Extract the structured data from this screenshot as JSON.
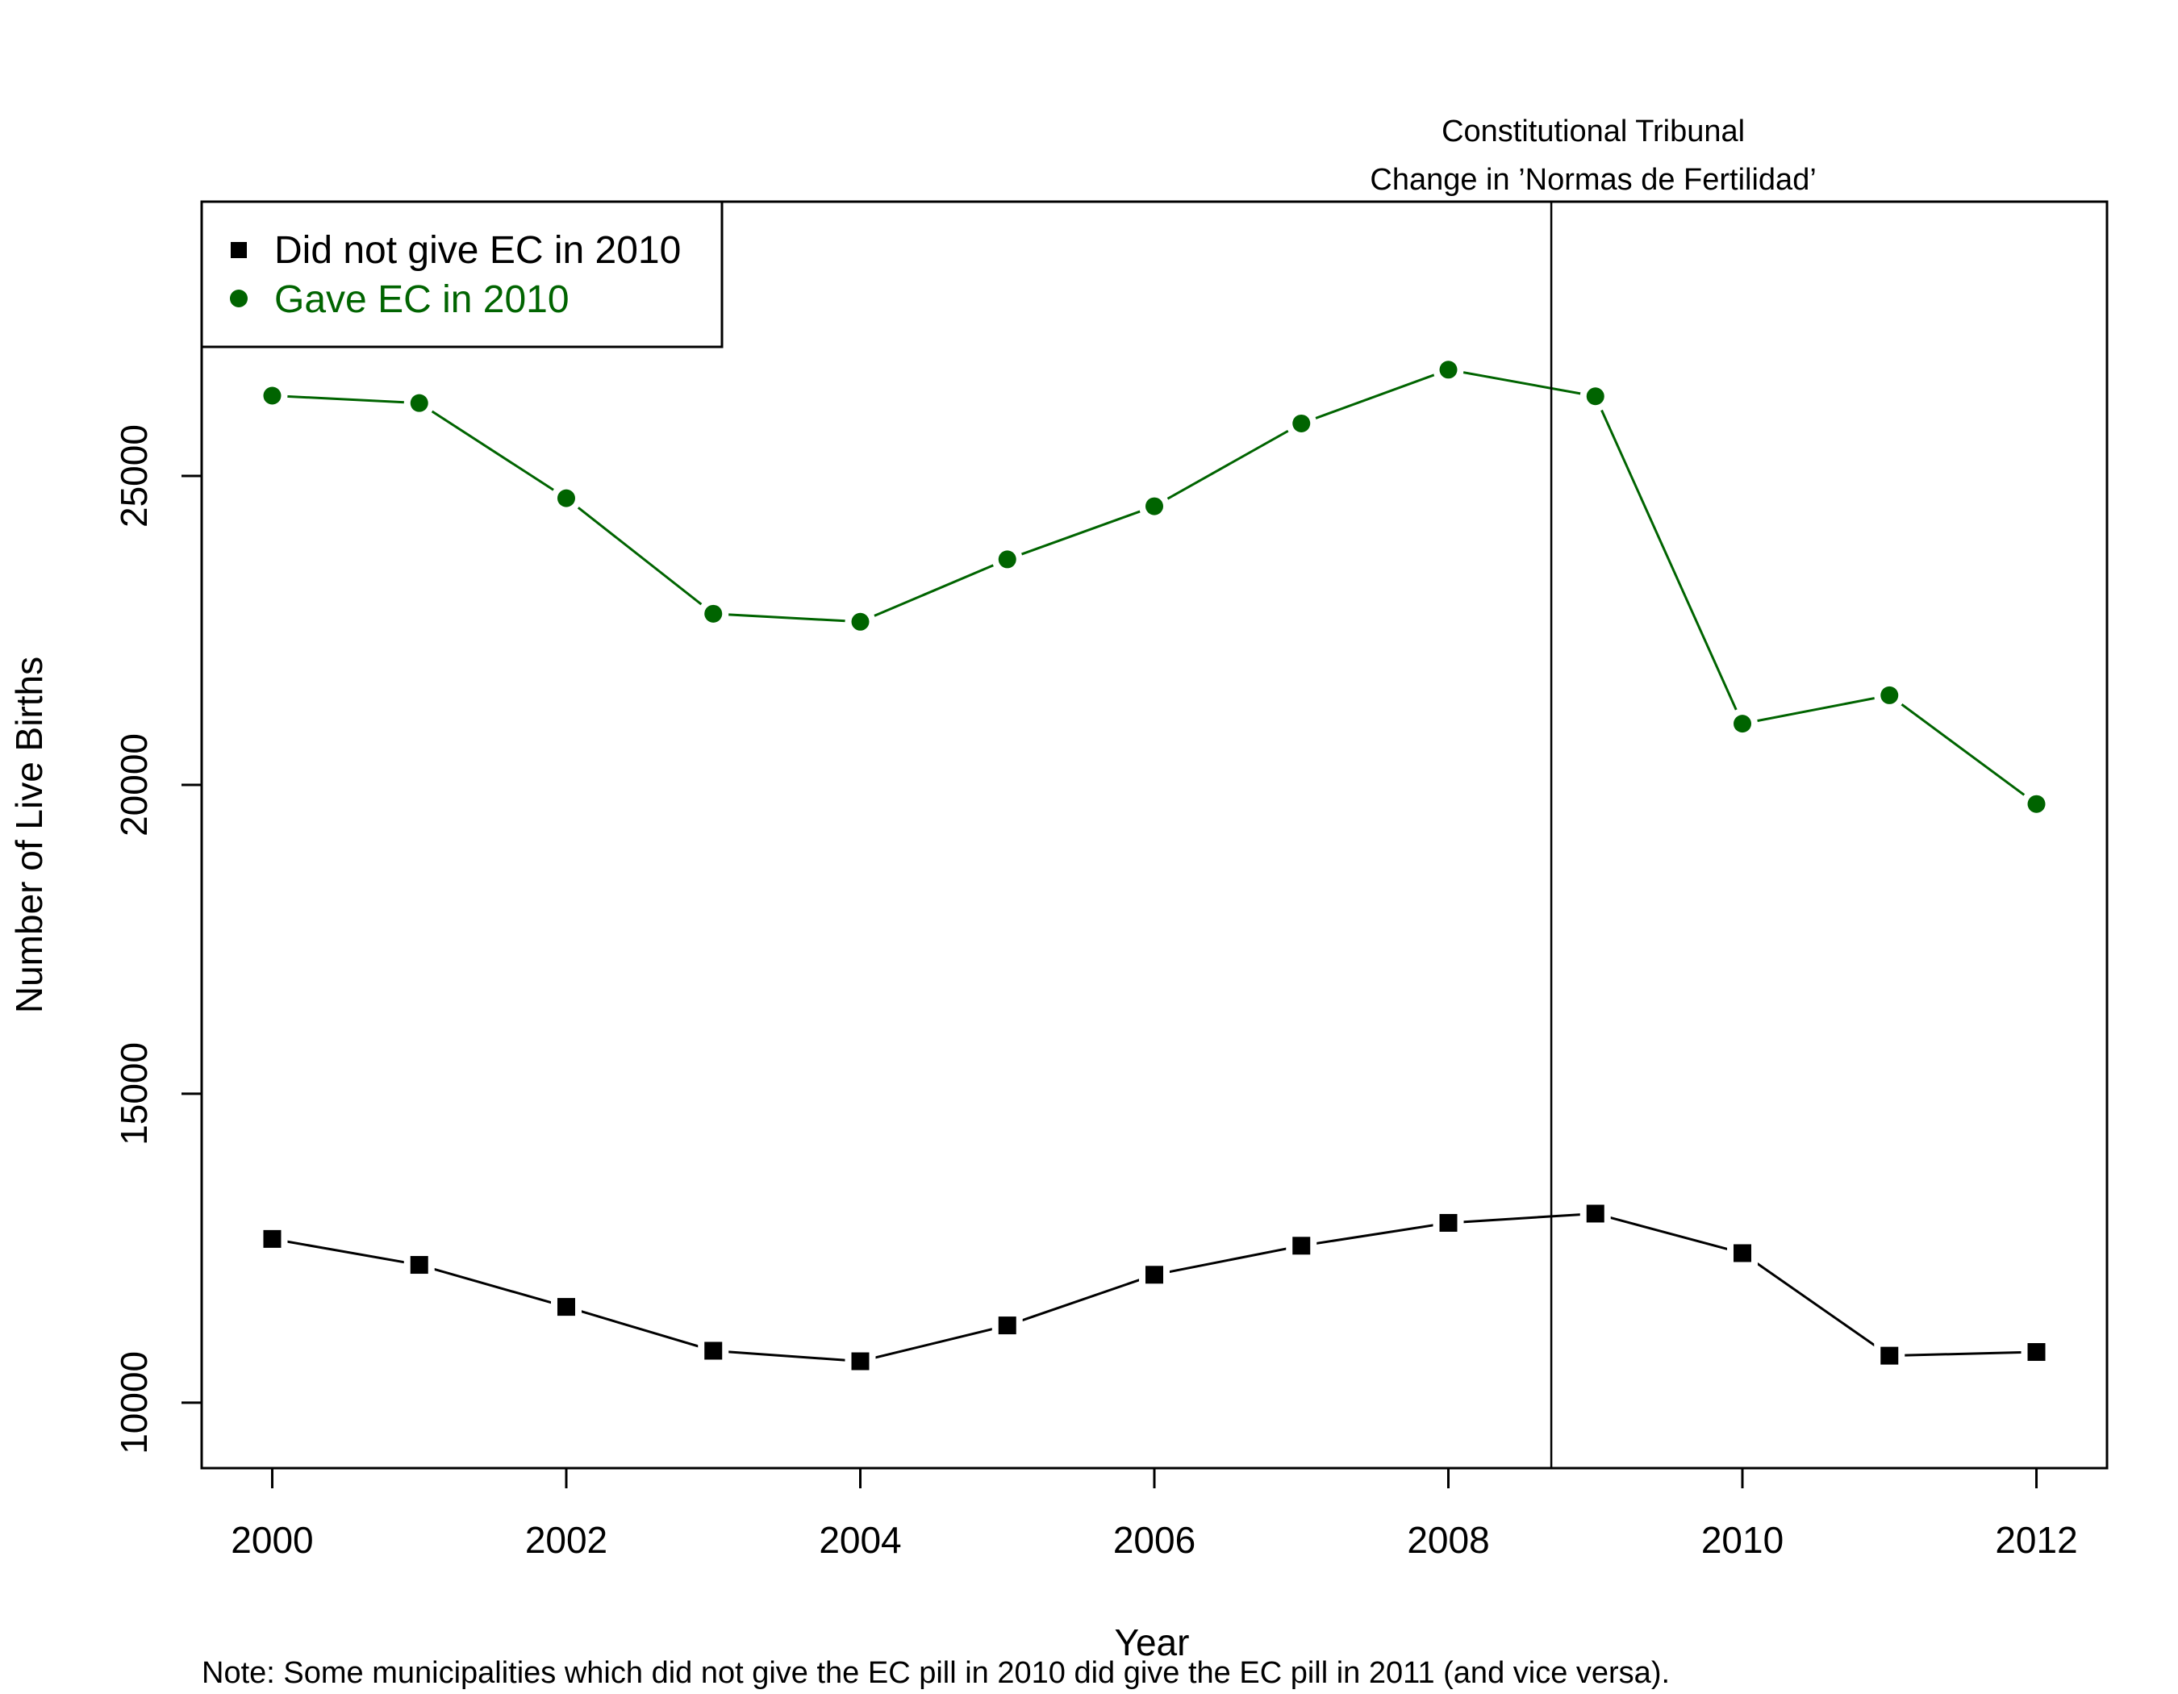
{
  "chart_data": {
    "type": "line",
    "x": [
      2000,
      2001,
      2002,
      2003,
      2004,
      2005,
      2006,
      2007,
      2008,
      2009,
      2010,
      2011,
      2012
    ],
    "series": [
      {
        "name": "Did not give EC in 2010",
        "color": "#000000",
        "marker": "square",
        "values": [
          12650,
          12230,
          11550,
          10840,
          10670,
          11250,
          12070,
          12540,
          12910,
          13060,
          12420,
          10760,
          10820
        ]
      },
      {
        "name": "Gave EC in 2010",
        "color": "#006400",
        "marker": "circle",
        "values": [
          26300,
          26180,
          24640,
          22770,
          22640,
          23650,
          24510,
          25850,
          26720,
          26290,
          20990,
          21450,
          19690
        ]
      }
    ],
    "xlabel": "Year",
    "ylabel": "Number of Live Births",
    "xlim": [
      1999.52,
      2012.48
    ],
    "ylim": [
      8940,
      29440
    ],
    "xticks": [
      "2000",
      "2002",
      "2004",
      "2006",
      "2008",
      "2010",
      "2012"
    ],
    "yticks": [
      "10000",
      "15000",
      "20000",
      "25000"
    ],
    "vline": {
      "x": 2008.7,
      "labels": [
        "Constitutional Tribunal",
        "Change in ’Normas de Fertilidad’"
      ]
    },
    "legend_position": "top-left",
    "note": "Note: Some municipalities which did not give the EC pill in 2010 did give the EC pill in 2011 (and vice versa)."
  }
}
